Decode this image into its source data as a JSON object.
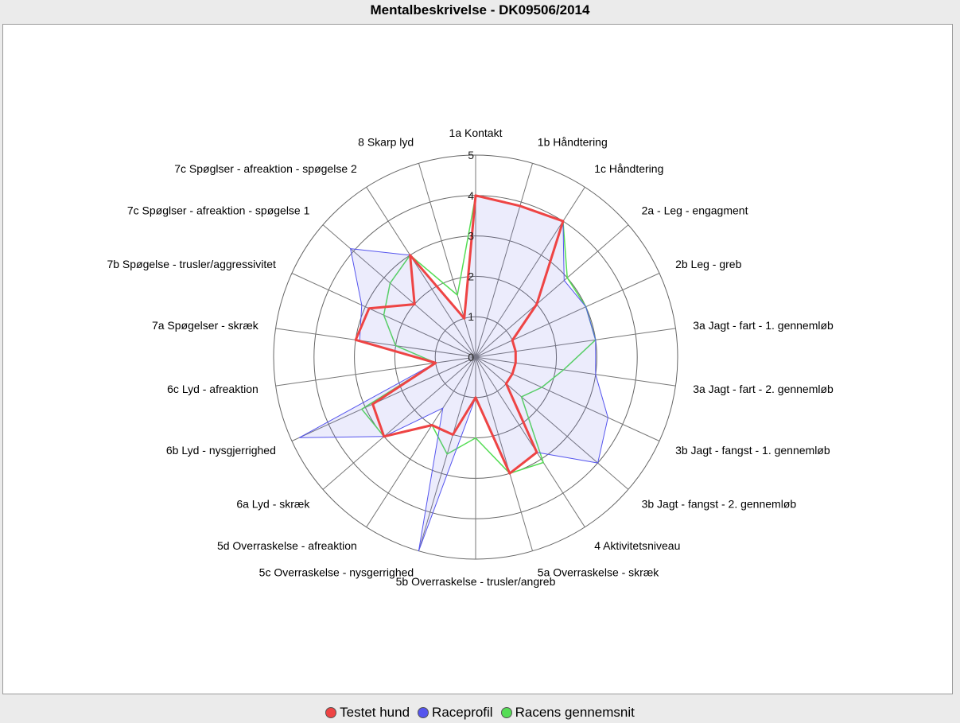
{
  "chart_data": {
    "type": "radar",
    "title": "Mentalbeskrivelse - DK09506/2014",
    "rlim": [
      0,
      5
    ],
    "ticks": [
      "0",
      "1",
      "2",
      "3",
      "4",
      "5"
    ],
    "grid": true,
    "legend_position": "bottom",
    "categories": [
      "1a Kontakt",
      "1b Håndtering",
      "1c Håndtering",
      "2a - Leg - engagment",
      "2b Leg - greb",
      "3a Jagt - fart - 1. gennemløb",
      "3a Jagt - fart - 2. gennemløb",
      "3b Jagt - fangst - 1. gennemløb",
      "3b Jagt - fangst - 2. gennemløb",
      "4 Aktivitetsniveau",
      "5a Overraskelse - skræk",
      "5b Overraskelse - trusler/angreb",
      "5c Overraskelse - nysgerrighed",
      "5d Overraskelse - afreaktion",
      "6a Lyd - skræk",
      "6b Lyd - nysgjerrighed",
      "6c Lyd - afreaktion",
      "7a Spøgelser - skræk",
      "7b Spøgelse - trusler/aggressivitet",
      "7c Spøglser - afreaktion - spøgelse 1",
      "7c Spøglser - afreaktion - spøgelse 2",
      "8 Skarp lyd"
    ],
    "series": [
      {
        "name": "Racens gennemsnit",
        "color": "#55dd55",
        "values": [
          4.0,
          3.9,
          4.0,
          3.0,
          3.0,
          3.0,
          2.2,
          1.8,
          1.5,
          3.1,
          3.0,
          2.0,
          2.5,
          2.0,
          3.0,
          3.1,
          1.0,
          2.0,
          2.5,
          2.8,
          3.0,
          1.6
        ]
      },
      {
        "name": "Raceprofil",
        "color": "#5555ee",
        "values": [
          4.0,
          3.9,
          4.0,
          2.9,
          3.0,
          3.0,
          3.0,
          3.6,
          4.0,
          2.8,
          3.0,
          1.0,
          5.0,
          1.5,
          3.0,
          4.8,
          1.0,
          2.9,
          3.1,
          4.1,
          3.0,
          1.0
        ]
      },
      {
        "name": "Testet hund",
        "color": "#ee4444",
        "values": [
          4.0,
          3.9,
          4.0,
          2.0,
          1.0,
          1.0,
          1.0,
          1.0,
          1.0,
          2.8,
          3.0,
          1.0,
          2.0,
          2.0,
          3.0,
          2.8,
          1.0,
          3.0,
          2.9,
          2.0,
          3.0,
          1.0
        ]
      }
    ]
  },
  "legend": {
    "items": [
      {
        "label": "Testet hund",
        "color": "#ee4444"
      },
      {
        "label": "Raceprofil",
        "color": "#5555ee"
      },
      {
        "label": "Racens gennemsnit",
        "color": "#55dd55"
      }
    ]
  }
}
